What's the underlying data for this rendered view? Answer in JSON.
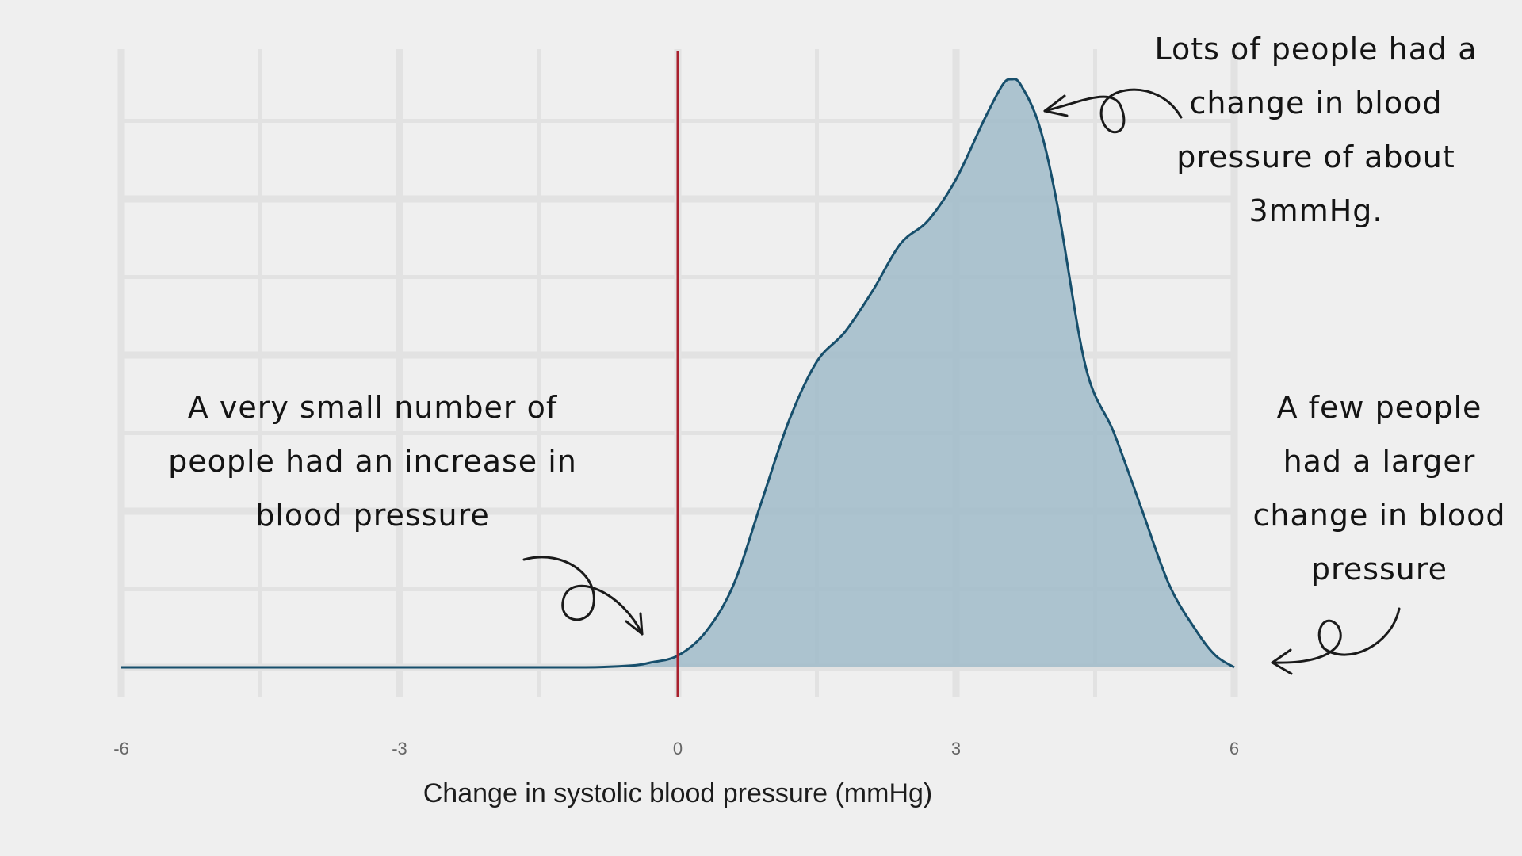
{
  "chart_data": {
    "type": "area",
    "title": "",
    "xlabel": "Change in systolic blood pressure (mmHg)",
    "ylabel": "",
    "xlim": [
      -6,
      6
    ],
    "ylim": [
      0,
      1
    ],
    "x_ticks": [
      -6,
      -3,
      0,
      3,
      6
    ],
    "x_tick_labels": [
      "-6",
      "-3",
      "0",
      "3",
      "6"
    ],
    "grid": true,
    "legend": "none",
    "reference_line": {
      "x": 0,
      "color": "#a8202d"
    },
    "series": [
      {
        "x": [
          -6.0,
          -5.0,
          -4.0,
          -3.0,
          -2.0,
          -1.0,
          -0.5,
          -0.3,
          0.0,
          0.3,
          0.6,
          0.9,
          1.2,
          1.5,
          1.8,
          2.1,
          2.4,
          2.7,
          3.0,
          3.3,
          3.5,
          3.6,
          3.7,
          3.9,
          4.1,
          4.4,
          4.7,
          5.0,
          5.3,
          5.6,
          5.8,
          6.0
        ],
        "y": [
          0.0,
          0.0,
          0.0,
          0.0,
          0.0,
          0.0,
          0.003,
          0.008,
          0.02,
          0.06,
          0.14,
          0.28,
          0.42,
          0.52,
          0.57,
          0.64,
          0.72,
          0.76,
          0.83,
          0.93,
          0.99,
          1.0,
          0.99,
          0.92,
          0.78,
          0.51,
          0.4,
          0.27,
          0.14,
          0.06,
          0.02,
          0.0
        ]
      }
    ],
    "colors": {
      "fill": "#9dbac8",
      "line": "#174f6c",
      "grid": "#e2e2e2",
      "reference": "#a8202d"
    }
  },
  "annotations": {
    "peak": [
      "Lots of people had a",
      "change in blood",
      "pressure of about",
      "3mmHg."
    ],
    "increase": [
      "A very small number of",
      "people had an increase in",
      "blood pressure"
    ],
    "larger": [
      "A few people",
      "had a larger",
      "change in blood",
      "pressure"
    ]
  }
}
